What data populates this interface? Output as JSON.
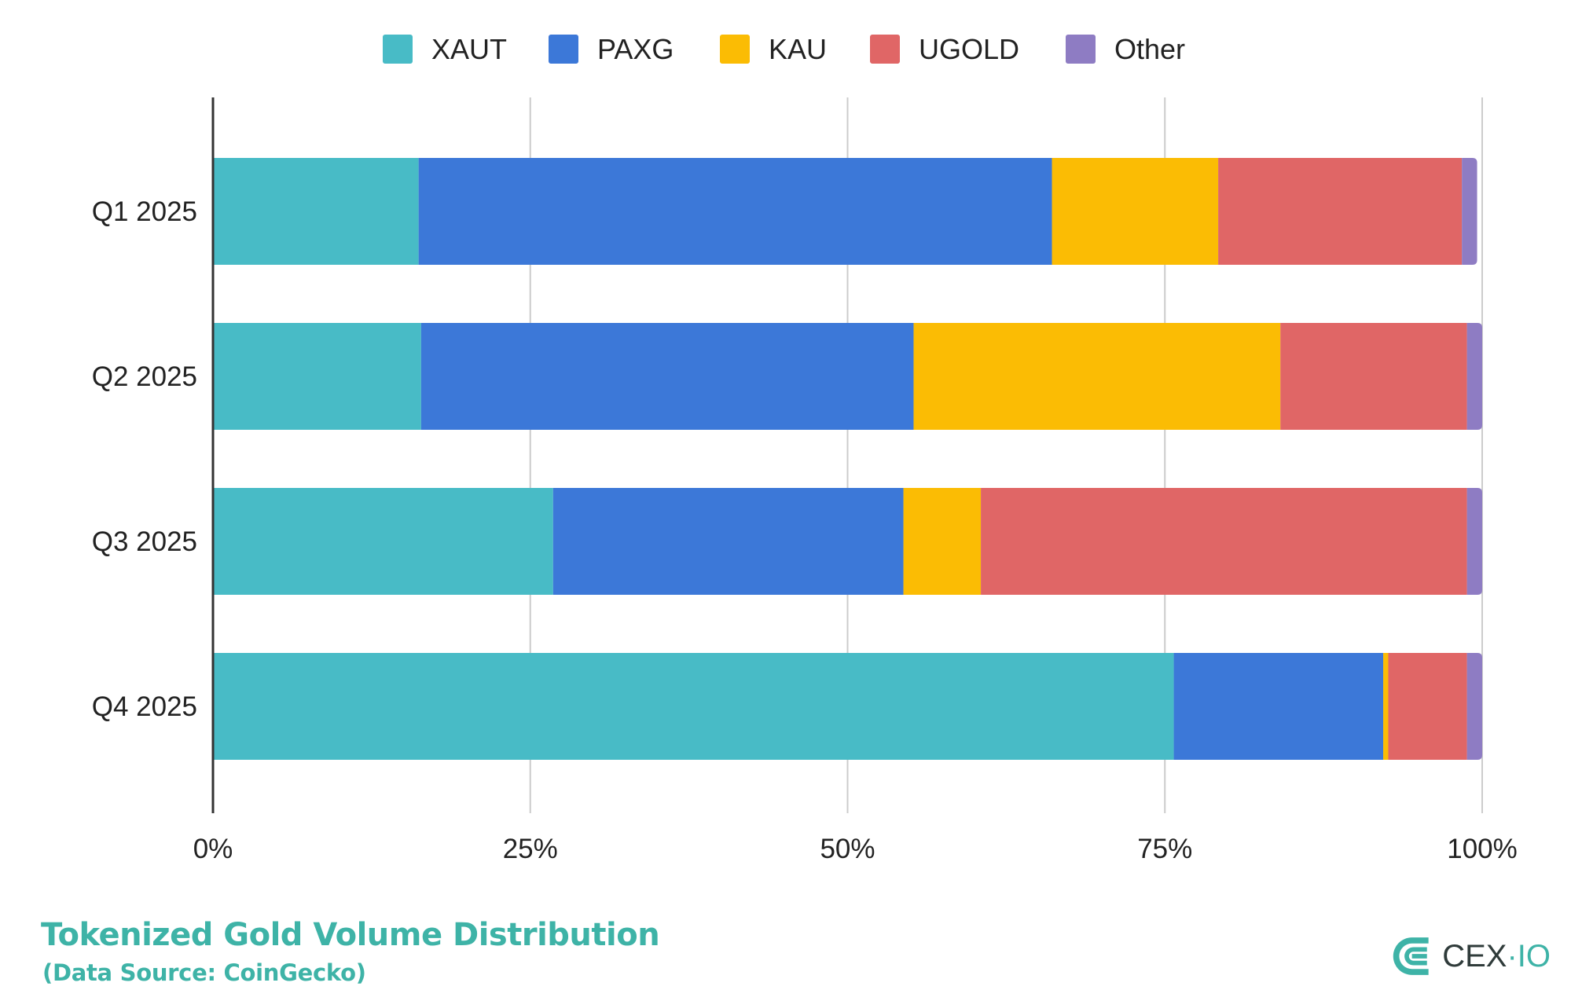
{
  "chart_data": {
    "type": "bar",
    "orientation": "horizontal",
    "stacked": "percent",
    "title": "Tokenized Gold Volume Distribution",
    "subtitle": "(Data Source: CoinGecko)",
    "xlabel": "",
    "ylabel": "",
    "xlim": [
      0,
      100
    ],
    "x_ticks": [
      "0%",
      "25%",
      "50%",
      "75%",
      "100%"
    ],
    "x_tick_values": [
      0,
      25,
      50,
      75,
      100
    ],
    "grid": true,
    "legend_position": "top-center",
    "categories": [
      "Q1 2025",
      "Q2 2025",
      "Q3 2025",
      "Q4 2025"
    ],
    "series": [
      {
        "name": "XAUT",
        "color": "#48bbc6",
        "values": [
          16.2,
          16.4,
          26.8,
          75.7
        ]
      },
      {
        "name": "PAXG",
        "color": "#3c78d8",
        "values": [
          49.9,
          38.8,
          27.6,
          16.5
        ]
      },
      {
        "name": "KAU",
        "color": "#fbbc04",
        "values": [
          13.1,
          28.9,
          6.1,
          0.4
        ]
      },
      {
        "name": "UGOLD",
        "color": "#e06666",
        "values": [
          19.2,
          14.7,
          38.3,
          6.2
        ]
      },
      {
        "name": "Other",
        "color": "#8e7cc3",
        "values": [
          1.2,
          1.2,
          1.2,
          1.2
        ]
      }
    ]
  },
  "footer": {
    "title": "Tokenized Gold Volume Distribution",
    "subtitle": "(Data Source: CoinGecko)"
  },
  "logo": {
    "icon": "cex-io-logo-icon",
    "text_main": "CEX",
    "text_dot": "·",
    "text_io": "IO",
    "color": "#3eb3a7"
  }
}
